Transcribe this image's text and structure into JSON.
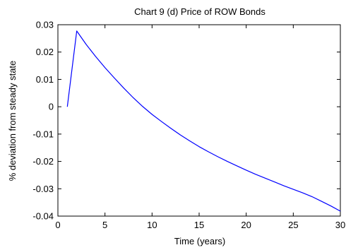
{
  "chart_data": {
    "type": "line",
    "title": "Chart 9 (d) Price of ROW Bonds",
    "xlabel": "Time (years)",
    "ylabel": "% deviation from steady state",
    "xlim": [
      0,
      30
    ],
    "ylim": [
      -0.04,
      0.03
    ],
    "xticks": [
      0,
      5,
      10,
      15,
      20,
      25,
      30
    ],
    "xtick_labels": [
      "0",
      "5",
      "10",
      "15",
      "20",
      "25",
      "30"
    ],
    "yticks": [
      0.03,
      0.02,
      0.01,
      0,
      -0.01,
      -0.02,
      -0.03,
      -0.04
    ],
    "ytick_labels": [
      "0.03",
      "0.02",
      "0.01",
      "0",
      "-0.01",
      "-0.02",
      "-0.03",
      "-0.04"
    ],
    "grid": false,
    "line_color": "#0000ff",
    "series": [
      {
        "x": [
          1,
          2,
          3,
          4,
          5,
          6,
          7,
          8,
          9,
          10,
          11,
          12,
          13,
          14,
          15,
          16,
          17,
          18,
          19,
          20,
          21,
          22,
          23,
          24,
          25,
          26,
          27,
          28,
          29,
          30
        ],
        "values": [
          0.0,
          0.0277,
          0.0228,
          0.0184,
          0.0143,
          0.0105,
          0.0068,
          0.0033,
          0.0001,
          -0.0028,
          -0.0054,
          -0.0079,
          -0.0103,
          -0.0125,
          -0.0146,
          -0.0165,
          -0.0183,
          -0.02,
          -0.0216,
          -0.0232,
          -0.0247,
          -0.0261,
          -0.0275,
          -0.0289,
          -0.0302,
          -0.0315,
          -0.0329,
          -0.0346,
          -0.0363,
          -0.0382
        ]
      }
    ]
  }
}
